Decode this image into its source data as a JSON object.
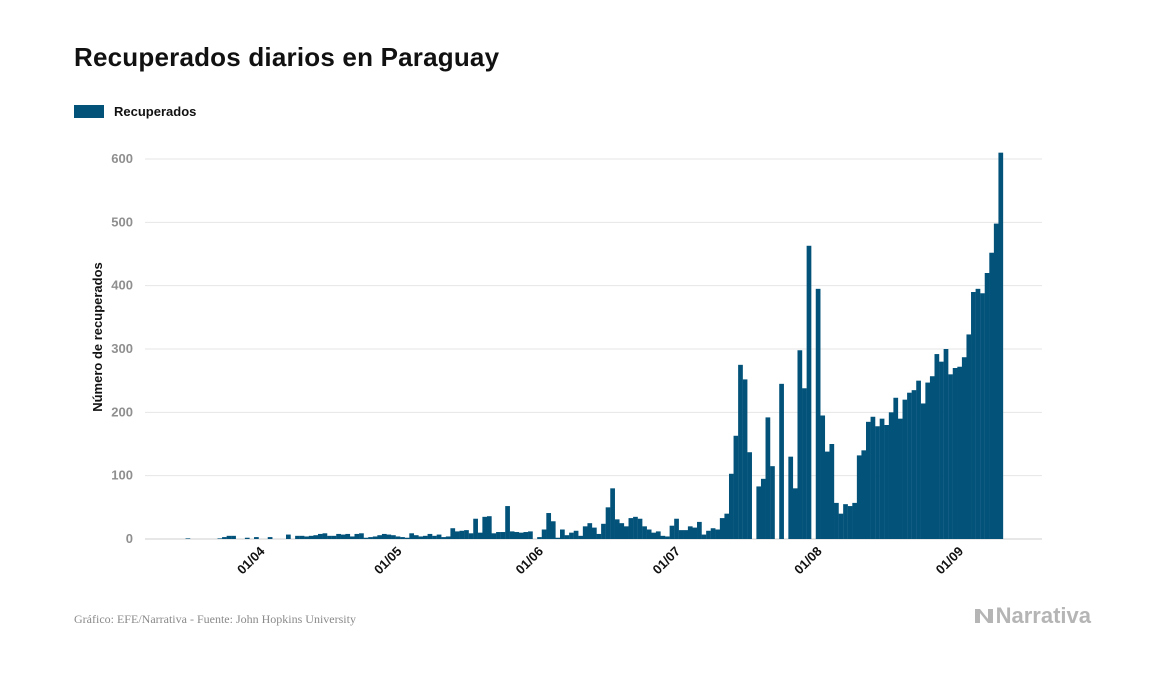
{
  "title": "Recuperados diarios en Paraguay",
  "legend": {
    "label": "Recuperados"
  },
  "footer": {
    "source": "Gráfico: EFE/Narrativa - Fuente: John Hopkins University",
    "brand": "Narrativa"
  },
  "colors": {
    "bar": "#02527a",
    "grid": "#e6e6e6",
    "brand": "#b5b5b5"
  },
  "chart_data": {
    "type": "bar",
    "title": "Recuperados diarios en Paraguay",
    "ylabel": "Número de recuperados",
    "xlabel": "",
    "ylim": [
      0,
      650
    ],
    "yticks": [
      0,
      100,
      200,
      300,
      400,
      500,
      600
    ],
    "grid": true,
    "legend_position": "top-left",
    "x_start": "2020-03-07",
    "xtick_labels": [
      {
        "label": "01/04",
        "date": "2020-04-01"
      },
      {
        "label": "01/05",
        "date": "2020-05-01"
      },
      {
        "label": "01/06",
        "date": "2020-06-01"
      },
      {
        "label": "01/07",
        "date": "2020-07-01"
      },
      {
        "label": "01/08",
        "date": "2020-08-01"
      },
      {
        "label": "01/09",
        "date": "2020-09-01"
      }
    ],
    "series": [
      {
        "name": "Recuperados",
        "values": [
          0,
          0,
          0,
          0,
          0,
          0,
          0,
          0,
          1,
          0,
          0,
          0,
          0,
          0,
          0,
          1,
          3,
          5,
          5,
          0,
          0,
          2,
          0,
          3,
          0,
          0,
          3,
          0,
          0,
          0,
          7,
          0,
          5,
          5,
          4,
          5,
          6,
          8,
          9,
          5,
          5,
          8,
          7,
          8,
          4,
          8,
          9,
          2,
          3,
          4,
          6,
          8,
          7,
          6,
          4,
          3,
          2,
          9,
          6,
          4,
          5,
          8,
          5,
          7,
          3,
          4,
          17,
          12,
          13,
          14,
          9,
          32,
          10,
          35,
          36,
          9,
          11,
          11,
          52,
          12,
          11,
          10,
          11,
          12,
          0,
          3,
          15,
          41,
          28,
          2,
          15,
          6,
          10,
          13,
          5,
          20,
          25,
          18,
          8,
          24,
          50,
          80,
          31,
          25,
          20,
          33,
          35,
          32,
          20,
          15,
          10,
          12,
          5,
          4,
          21,
          32,
          14,
          14,
          20,
          18,
          27,
          7,
          13,
          17,
          15,
          33,
          40,
          103,
          163,
          275,
          252,
          137,
          0,
          83,
          95,
          192,
          115,
          0,
          245,
          0,
          130,
          80,
          298,
          238,
          463,
          0,
          395,
          195,
          138,
          150,
          57,
          40,
          55,
          52,
          57,
          132,
          140,
          185,
          193,
          178,
          190,
          180,
          200,
          223,
          190,
          220,
          231,
          235,
          250,
          214,
          247,
          257,
          292,
          280,
          300,
          260,
          270,
          272,
          287,
          323,
          390,
          395,
          388,
          420,
          452,
          498,
          610
        ]
      }
    ]
  }
}
